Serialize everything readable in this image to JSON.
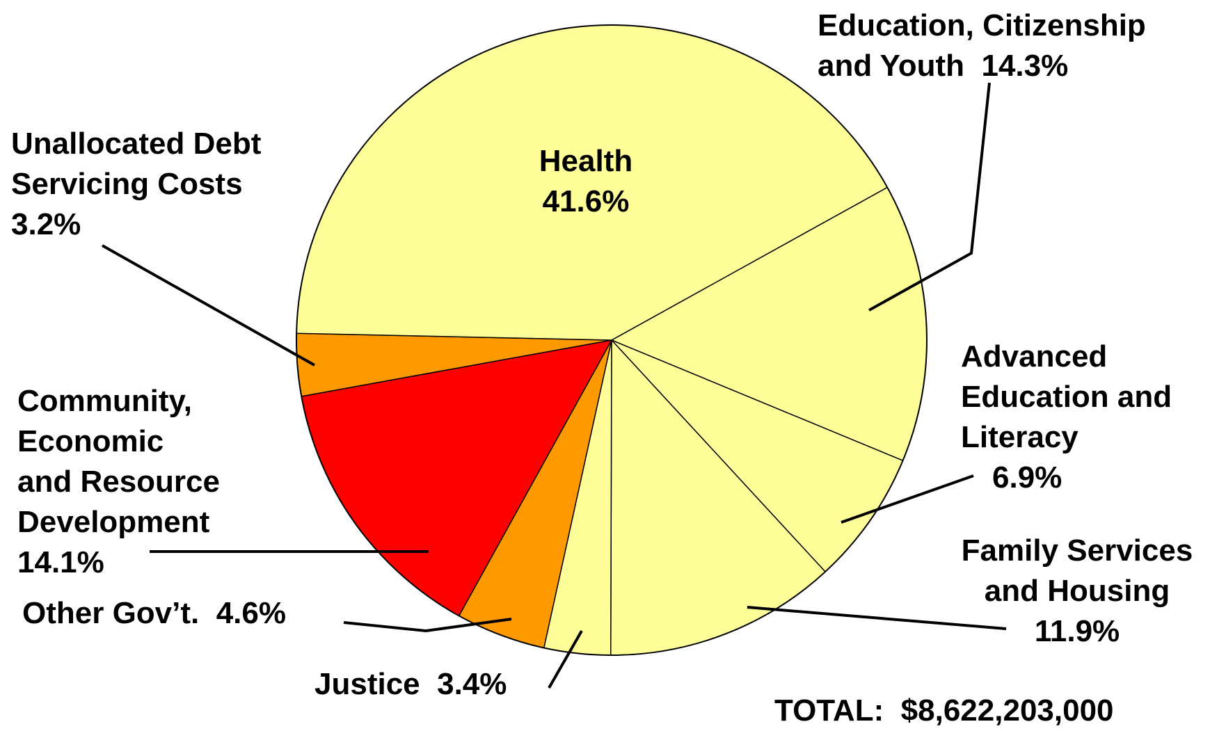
{
  "chart_data": {
    "type": "pie",
    "total": "TOTAL:  $8,622,203,000",
    "start_angle": 61,
    "categories": [
      "Education, Citizenship\nand Youth",
      "Advanced\nEducation and\nLiteracy",
      "Family Services\nand Housing",
      "Justice",
      "Other Gov’t.",
      "Community,\nEconomic\nand Resource\nDevelopment",
      "Unallocated Debt\nServicing Costs",
      "Health"
    ],
    "values": [
      14.3,
      6.9,
      11.9,
      3.4,
      4.6,
      14.1,
      3.2,
      41.6
    ],
    "value_labels": [
      "14.3%",
      "6.9%",
      "11.9%",
      "3.4%",
      "4.6%",
      "14.1%",
      "3.2%",
      "41.6%"
    ],
    "colors": [
      "#FFFF99",
      "#FFFF99",
      "#FFFF99",
      "#FFFF99",
      "#FF9900",
      "#FF0000",
      "#FF9900",
      "#FFFF99"
    ]
  }
}
